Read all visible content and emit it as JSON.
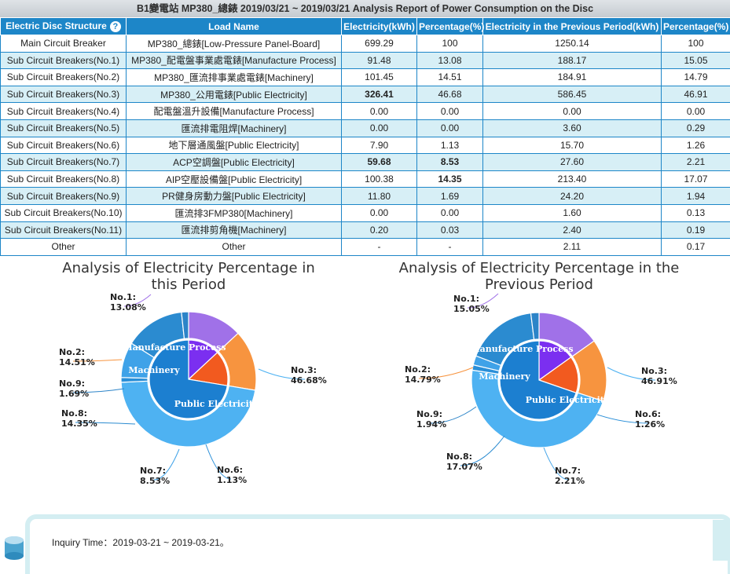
{
  "report_title": "B1變電站 MP380_總錶 2019/03/21 ~ 2019/03/21 Analysis Report of Power Consumption on the Disc",
  "table": {
    "headers": [
      "Electric Disc Structure",
      "Load Name",
      "Electricity(kWh)",
      "Percentage(%)",
      "Electricity in the Previous Period(kWh)",
      "Percentage(%)"
    ],
    "help_icon": "?",
    "rows": [
      {
        "structure": "Main Circuit Breaker",
        "load": "MP380_總錶[Low-Pressure Panel-Board]",
        "kwh": "699.29",
        "pct": "100",
        "prev_kwh": "1250.14",
        "prev_pct": "100"
      },
      {
        "structure": "Sub Circuit Breakers(No.1)",
        "load": "MP380_配電盤事業處電錶[Manufacture Process]",
        "kwh": "91.48",
        "pct": "13.08",
        "prev_kwh": "188.17",
        "prev_pct": "15.05"
      },
      {
        "structure": "Sub Circuit Breakers(No.2)",
        "load": "MP380_匯流排事業處電錶[Machinery]",
        "kwh": "101.45",
        "pct": "14.51",
        "prev_kwh": "184.91",
        "prev_pct": "14.79"
      },
      {
        "structure": "Sub Circuit Breakers(No.3)",
        "load": "MP380_公用電錶[Public Electricity]",
        "kwh": "326.41",
        "pct": "46.68",
        "prev_kwh": "586.45",
        "prev_pct": "46.91"
      },
      {
        "structure": "Sub Circuit Breakers(No.4)",
        "load": "配電盤溫升設備[Manufacture Process]",
        "kwh": "0.00",
        "pct": "0.00",
        "prev_kwh": "0.00",
        "prev_pct": "0.00"
      },
      {
        "structure": "Sub Circuit Breakers(No.5)",
        "load": "匯流排電阻焊[Machinery]",
        "kwh": "0.00",
        "pct": "0.00",
        "prev_kwh": "3.60",
        "prev_pct": "0.29"
      },
      {
        "structure": "Sub Circuit Breakers(No.6)",
        "load": "地下層通風盤[Public Electricity]",
        "kwh": "7.90",
        "pct": "1.13",
        "prev_kwh": "15.70",
        "prev_pct": "1.26"
      },
      {
        "structure": "Sub Circuit Breakers(No.7)",
        "load": "ACP空調盤[Public Electricity]",
        "kwh": "59.68",
        "pct": "8.53",
        "prev_kwh": "27.60",
        "prev_pct": "2.21"
      },
      {
        "structure": "Sub Circuit Breakers(No.8)",
        "load": "AIP空壓設備盤[Public Electricity]",
        "kwh": "100.38",
        "pct": "14.35",
        "prev_kwh": "213.40",
        "prev_pct": "17.07"
      },
      {
        "structure": "Sub Circuit Breakers(No.9)",
        "load": "PR健身房動力盤[Public Electricity]",
        "kwh": "11.80",
        "pct": "1.69",
        "prev_kwh": "24.20",
        "prev_pct": "1.94"
      },
      {
        "structure": "Sub Circuit Breakers(No.10)",
        "load": "匯流排3FMP380[Machinery]",
        "kwh": "0.00",
        "pct": "0.00",
        "prev_kwh": "1.60",
        "prev_pct": "0.13"
      },
      {
        "structure": "Sub Circuit Breakers(No.11)",
        "load": "匯流排剪角機[Machinery]",
        "kwh": "0.20",
        "pct": "0.03",
        "prev_kwh": "2.40",
        "prev_pct": "0.19"
      },
      {
        "structure": "Other",
        "load": "Other",
        "kwh": "-",
        "pct": "-",
        "prev_kwh": "2.11",
        "prev_pct": "0.17"
      }
    ],
    "highlight_colors": {
      "blue": "#2222c8",
      "red": "#e02020"
    }
  },
  "chart_data": [
    {
      "type": "pie",
      "title": "Analysis of Electricity Percentage in this Period",
      "inner": [
        {
          "name": "Manufacture Process",
          "value": 13.08,
          "color": "#7b2ff0"
        },
        {
          "name": "Machinery",
          "value": 14.54,
          "color": "#f25a1f"
        },
        {
          "name": "Public Electricity",
          "value": 72.38,
          "color": "#1c7fd0"
        }
      ],
      "outer": [
        {
          "name": "No.1",
          "value": 13.08,
          "label": "13.08%",
          "color": "#a071e8"
        },
        {
          "name": "No.2",
          "value": 14.51,
          "label": "14.51%",
          "color": "#f7943f"
        },
        {
          "name": "No.3",
          "value": 46.68,
          "label": "46.68%",
          "color": "#4eb2f2"
        },
        {
          "name": "No.6",
          "value": 1.13,
          "label": "1.13%",
          "color": "#2a8fd8"
        },
        {
          "name": "No.7",
          "value": 8.53,
          "label": "8.53%",
          "color": "#3fa2e8"
        },
        {
          "name": "No.8",
          "value": 14.35,
          "label": "14.35%",
          "color": "#2b8bd0"
        },
        {
          "name": "No.9",
          "value": 1.69,
          "label": "1.69%",
          "color": "#2c84c8"
        }
      ]
    },
    {
      "type": "pie",
      "title": "Analysis of Electricity Percentage in the Previous Period",
      "inner": [
        {
          "name": "Manufacture Process",
          "value": 15.05,
          "color": "#7b2ff0"
        },
        {
          "name": "Machinery",
          "value": 15.11,
          "color": "#f25a1f"
        },
        {
          "name": "Public Electricity",
          "value": 69.39,
          "color": "#1c7fd0"
        }
      ],
      "outer": [
        {
          "name": "No.1",
          "value": 15.05,
          "label": "15.05%",
          "color": "#a071e8"
        },
        {
          "name": "No.2",
          "value": 14.79,
          "label": "14.79%",
          "color": "#f7943f"
        },
        {
          "name": "No.3",
          "value": 46.91,
          "label": "46.91%",
          "color": "#4eb2f2"
        },
        {
          "name": "No.6",
          "value": 1.26,
          "label": "1.26%",
          "color": "#2a8fd8"
        },
        {
          "name": "No.7",
          "value": 2.21,
          "label": "2.21%",
          "color": "#3fa2e8"
        },
        {
          "name": "No.8",
          "value": 17.07,
          "label": "17.07%",
          "color": "#2b8bd0"
        },
        {
          "name": "No.9",
          "value": 1.94,
          "label": "1.94%",
          "color": "#2c84c8"
        }
      ]
    }
  ],
  "footer": {
    "inquiry_text": "Inquiry Time：2019-03-21 ~ 2019-03-21。"
  }
}
